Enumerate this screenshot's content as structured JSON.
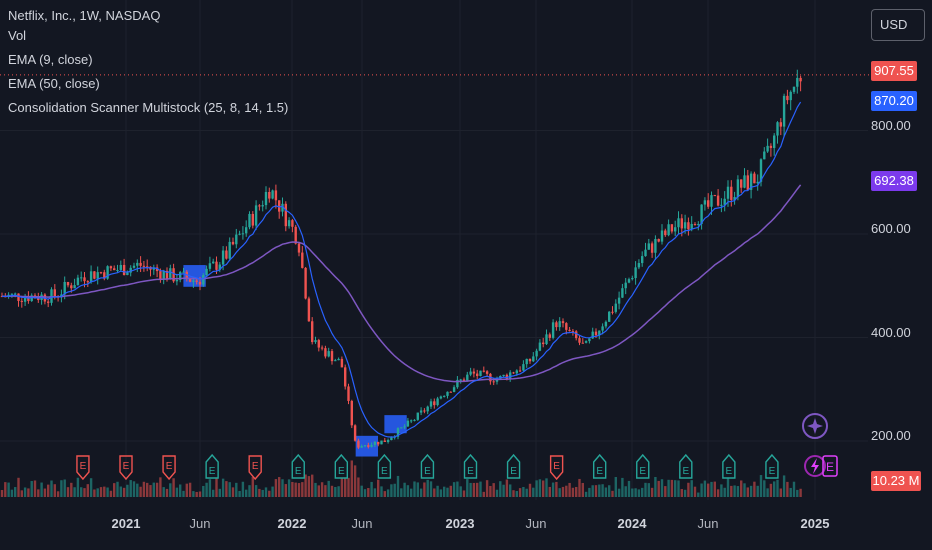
{
  "legend": {
    "symbol": "Netflix, Inc., 1W, NASDAQ",
    "vol": "Vol",
    "ema9": "EMA (9, close)",
    "ema50": "EMA (50, close)",
    "scanner": "Consolidation Scanner Multistock (25, 8, 14, 1.5)"
  },
  "currency": "USD",
  "price_tags": {
    "last": "907.55",
    "ema9": "870.20",
    "ema50": "692.38",
    "volume": "10.23 M"
  },
  "colors": {
    "bg": "#131722",
    "up": "#26a69a",
    "down": "#ef5350",
    "ema9": "#2962ff",
    "ema50": "#7e57c2",
    "consolidation": "#2962ff",
    "earnings_down": "#ef5350",
    "earnings_up": "#26a69a",
    "dividend_event": "#9c27b0"
  },
  "y_axis": [
    "800.00",
    "600.00",
    "400.00",
    "200.00"
  ],
  "x_axis": [
    {
      "label": "2021",
      "year": true
    },
    {
      "label": "Jun",
      "year": false
    },
    {
      "label": "2022",
      "year": true
    },
    {
      "label": "Jun",
      "year": false
    },
    {
      "label": "2023",
      "year": true
    },
    {
      "label": "Jun",
      "year": false
    },
    {
      "label": "2024",
      "year": true
    },
    {
      "label": "Jun",
      "year": false
    },
    {
      "label": "2025",
      "year": true
    }
  ],
  "chart_data": {
    "type": "candlestick",
    "y_ticks": [
      200,
      400,
      600,
      800
    ],
    "price_series": [
      {
        "date": "2020-08",
        "price": 480
      },
      {
        "date": "2020-10",
        "price": 520
      },
      {
        "date": "2020-12",
        "price": 530
      },
      {
        "date": "2021-02",
        "price": 540
      },
      {
        "date": "2021-04",
        "price": 520
      },
      {
        "date": "2021-06",
        "price": 510
      },
      {
        "date": "2021-08",
        "price": 560
      },
      {
        "date": "2021-10",
        "price": 640
      },
      {
        "date": "2021-11",
        "price": 690
      },
      {
        "date": "2022-01",
        "price": 590
      },
      {
        "date": "2022-02",
        "price": 390
      },
      {
        "date": "2022-04",
        "price": 350
      },
      {
        "date": "2022-05",
        "price": 190
      },
      {
        "date": "2022-07",
        "price": 200
      },
      {
        "date": "2022-09",
        "price": 240
      },
      {
        "date": "2022-11",
        "price": 290
      },
      {
        "date": "2023-01",
        "price": 330
      },
      {
        "date": "2023-03",
        "price": 320
      },
      {
        "date": "2023-05",
        "price": 350
      },
      {
        "date": "2023-07",
        "price": 430
      },
      {
        "date": "2023-09",
        "price": 380
      },
      {
        "date": "2023-11",
        "price": 460
      },
      {
        "date": "2024-01",
        "price": 560
      },
      {
        "date": "2024-03",
        "price": 610
      },
      {
        "date": "2024-05",
        "price": 640
      },
      {
        "date": "2024-07",
        "price": 680
      },
      {
        "date": "2024-09",
        "price": 710
      },
      {
        "date": "2024-10",
        "price": 770
      },
      {
        "date": "2024-11",
        "price": 860
      },
      {
        "date": "2024-12",
        "price": 907.55
      }
    ],
    "ema9_last": 870.2,
    "ema50_last": 692.38,
    "last_price": 907.55,
    "last_volume": "10.23 M",
    "consolidation_zones": [
      {
        "start": "2021-05",
        "end": "2021-06",
        "low": 498,
        "high": 540
      },
      {
        "start": "2022-05",
        "end": "2022-06",
        "low": 170,
        "high": 210
      },
      {
        "start": "2022-07",
        "end": "2022-08",
        "low": 215,
        "high": 250
      }
    ],
    "earnings_events": [
      {
        "date": "2020-10",
        "result": "down"
      },
      {
        "date": "2021-01",
        "result": "down"
      },
      {
        "date": "2021-04",
        "result": "down"
      },
      {
        "date": "2021-07",
        "result": "up"
      },
      {
        "date": "2021-10",
        "result": "down"
      },
      {
        "date": "2022-01",
        "result": "up"
      },
      {
        "date": "2022-04",
        "result": "up"
      },
      {
        "date": "2022-07",
        "result": "up"
      },
      {
        "date": "2022-10",
        "result": "up"
      },
      {
        "date": "2023-01",
        "result": "up"
      },
      {
        "date": "2023-04",
        "result": "up"
      },
      {
        "date": "2023-07",
        "result": "down"
      },
      {
        "date": "2023-10",
        "result": "up"
      },
      {
        "date": "2024-01",
        "result": "up"
      },
      {
        "date": "2024-04",
        "result": "up"
      },
      {
        "date": "2024-07",
        "result": "up"
      },
      {
        "date": "2024-10",
        "result": "up"
      }
    ]
  }
}
